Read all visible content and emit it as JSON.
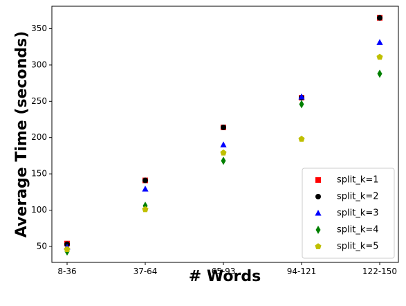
{
  "chart_data": {
    "type": "scatter",
    "title": "",
    "xlabel": "# Words",
    "ylabel": "Average Time (seconds)",
    "categories": [
      "8-36",
      "37-64",
      "65-93",
      "94-121",
      "122-150"
    ],
    "ylim": [
      28,
      381
    ],
    "yticks": [
      50,
      100,
      150,
      200,
      250,
      300,
      350
    ],
    "grid": false,
    "legend_position": "lower-right",
    "series": [
      {
        "name": "split_k=1",
        "marker": "square",
        "color": "#ff0000",
        "values": [
          54,
          141,
          214,
          255,
          365
        ]
      },
      {
        "name": "split_k=2",
        "marker": "circle",
        "color": "#000000",
        "values": [
          53,
          141,
          214,
          255,
          365
        ]
      },
      {
        "name": "split_k=3",
        "marker": "triangle",
        "color": "#0000ff",
        "values": [
          49,
          129,
          190,
          256,
          331
        ]
      },
      {
        "name": "split_k=4",
        "marker": "diamond",
        "color": "#008000",
        "values": [
          43,
          106,
          168,
          246,
          288
        ]
      },
      {
        "name": "split_k=5",
        "marker": "pentagon",
        "color": "#bfbf00",
        "values": [
          46,
          101,
          179,
          198,
          311
        ]
      }
    ]
  }
}
